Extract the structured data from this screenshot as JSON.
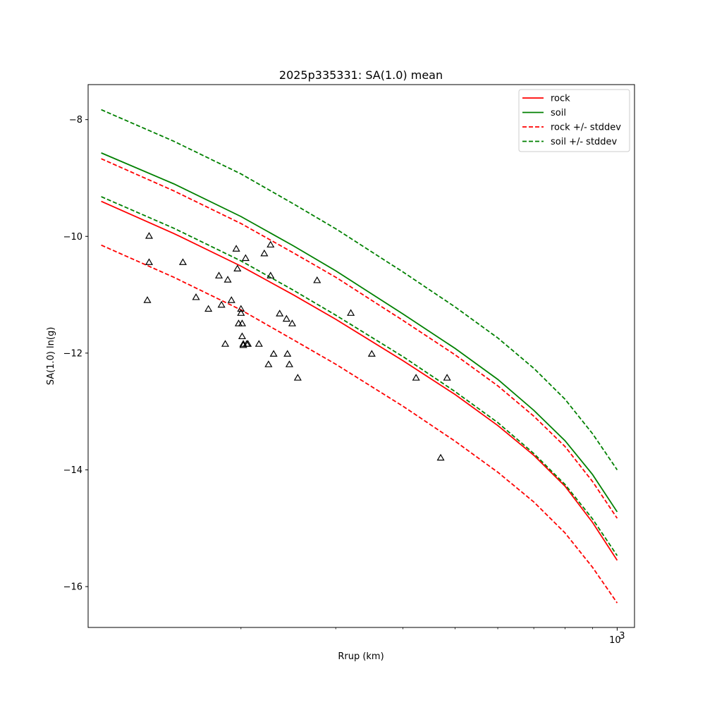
{
  "chart_data": {
    "type": "line",
    "title": "2025p335331: SA(1.0) mean",
    "xlabel": "Rrup (km)",
    "ylabel": "SA(1.0) ln(g)",
    "xscale": "log",
    "xlim": [
      104,
      1077
    ],
    "ylim": [
      -16.7,
      -7.4
    ],
    "yticks": [
      -8,
      -10,
      -12,
      -14,
      -16
    ],
    "ytick_labels": [
      "−8",
      "−10",
      "−12",
      "−14",
      "−16"
    ],
    "xtick_major": [
      {
        "value": 1000,
        "base": "10",
        "exp": "3"
      }
    ],
    "xtick_minor": [
      200,
      300,
      400,
      500,
      600,
      700,
      800,
      900
    ],
    "legend_position": "top-right",
    "series": [
      {
        "name": "rock",
        "color": "#ff0000",
        "style": "solid",
        "x": [
          110,
          150,
          200,
          250,
          300,
          400,
          500,
          600,
          700,
          800,
          900,
          1000
        ],
        "y": [
          -9.4,
          -9.95,
          -10.51,
          -11.0,
          -11.42,
          -12.13,
          -12.71,
          -13.24,
          -13.75,
          -14.28,
          -14.9,
          -15.55
        ]
      },
      {
        "name": "soil",
        "color": "#008000",
        "style": "solid",
        "x": [
          110,
          150,
          200,
          250,
          300,
          400,
          500,
          600,
          700,
          800,
          900,
          1000
        ],
        "y": [
          -8.57,
          -9.1,
          -9.66,
          -10.16,
          -10.59,
          -11.33,
          -11.92,
          -12.45,
          -12.98,
          -13.5,
          -14.08,
          -14.72
        ]
      },
      {
        "name": "rock +/- stddev",
        "color": "#ff0000",
        "style": "dashed",
        "x": [
          110,
          150,
          200,
          250,
          300,
          400,
          500,
          600,
          700,
          800,
          900,
          1000
        ],
        "y": [
          -8.67,
          -9.22,
          -9.78,
          -10.28,
          -10.7,
          -11.44,
          -12.03,
          -12.56,
          -13.08,
          -13.6,
          -14.2,
          -14.83
        ]
      },
      {
        "name": "",
        "color": "#ff0000",
        "style": "dashed",
        "x": [
          110,
          150,
          200,
          250,
          300,
          400,
          500,
          600,
          700,
          800,
          900,
          1000
        ],
        "y": [
          -10.15,
          -10.7,
          -11.26,
          -11.77,
          -12.19,
          -12.91,
          -13.51,
          -14.04,
          -14.55,
          -15.08,
          -15.67,
          -16.28
        ]
      },
      {
        "name": "soil +/- stddev",
        "color": "#008000",
        "style": "dashed",
        "x": [
          110,
          150,
          200,
          250,
          300,
          400,
          500,
          600,
          700,
          800,
          900,
          1000
        ],
        "y": [
          -7.83,
          -8.37,
          -8.93,
          -9.44,
          -9.87,
          -10.61,
          -11.21,
          -11.74,
          -12.26,
          -12.79,
          -13.38,
          -14.0
        ]
      },
      {
        "name": "",
        "color": "#008000",
        "style": "dashed",
        "x": [
          110,
          150,
          200,
          250,
          300,
          400,
          500,
          600,
          700,
          800,
          900,
          1000
        ],
        "y": [
          -9.32,
          -9.86,
          -10.42,
          -10.92,
          -11.35,
          -12.06,
          -12.66,
          -13.19,
          -13.72,
          -14.25,
          -14.84,
          -15.47
        ]
      }
    ],
    "observations": {
      "marker": "triangle",
      "color": "#000000",
      "x": [
        134,
        135,
        135,
        156,
        165,
        174,
        182,
        184,
        187,
        189,
        192,
        196,
        197,
        198,
        200,
        200,
        201,
        201,
        202,
        202,
        204,
        205,
        206,
        216,
        221,
        225,
        227,
        227,
        230,
        236,
        243,
        244,
        246,
        249,
        255,
        277,
        320,
        350,
        423,
        470,
        483
      ],
      "y": [
        -11.1,
        -10.0,
        -10.45,
        -10.45,
        -11.05,
        -11.25,
        -10.68,
        -11.18,
        -11.85,
        -10.75,
        -11.1,
        -10.22,
        -10.56,
        -11.5,
        -11.25,
        -11.32,
        -11.72,
        -11.5,
        -11.87,
        -11.85,
        -10.38,
        -11.85,
        -11.85,
        -11.85,
        -10.3,
        -12.2,
        -10.68,
        -10.15,
        -12.02,
        -11.33,
        -11.42,
        -12.02,
        -12.2,
        -11.5,
        -12.43,
        -10.76,
        -11.32,
        -12.02,
        -12.43,
        -13.8,
        -12.43
      ]
    }
  }
}
